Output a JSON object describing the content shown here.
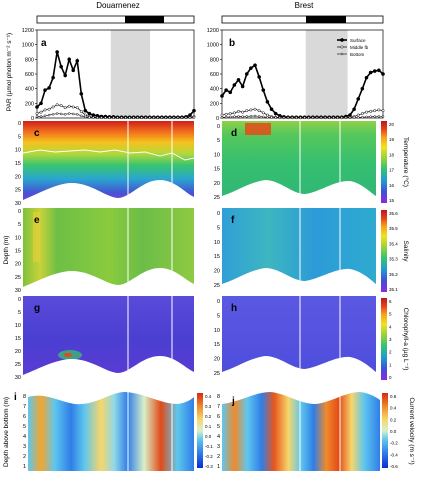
{
  "sites": [
    "Douarnenez",
    "Brest"
  ],
  "panel_letters": [
    "a",
    "b",
    "c",
    "d",
    "e",
    "f",
    "g",
    "h",
    "i",
    "j"
  ],
  "y_labels": {
    "par": "PAR (µmol photon m⁻² s⁻¹)",
    "depth": "Depth (m)",
    "height": "Depth above bottom (m)"
  },
  "colorbar_labels": {
    "temperature": "Temperature (°C)",
    "salinity": "Salinity",
    "chlorophyll": "Chlorophyll-a (µg L⁻¹)",
    "velocity": "Current velocity (m s⁻¹)"
  },
  "colorbar_ticks": {
    "temperature": [
      "15",
      "16",
      "17",
      "18",
      "19",
      "20"
    ],
    "salinity": [
      "35.6",
      "35.5",
      "35.4",
      "35.3",
      "35.2",
      "35.1"
    ],
    "chlorophyll": [
      "6",
      "5",
      "4",
      "3",
      "2",
      "1",
      "0"
    ],
    "velocity_left": [
      "0.4",
      "0.3",
      "0.2",
      "0.1",
      "0.0",
      "-0.1",
      "-0.2",
      "-0.3"
    ],
    "velocity_right": [
      "0.6",
      "0.4",
      "0.2",
      "0.0",
      "-0.2",
      "-0.4",
      "-0.6"
    ]
  },
  "palette": {
    "rainbow": [
      "#8a2be2",
      "#3f51d4",
      "#1e9fd0",
      "#36c46c",
      "#9ad23a",
      "#f2e21d",
      "#f6a21a",
      "#e8411c",
      "#c0141a"
    ],
    "diverging": [
      "#0a2bd6",
      "#2f7ee8",
      "#5ec7ee",
      "#d9f1c8",
      "#f7d66a",
      "#f08a2a",
      "#d42a13"
    ]
  },
  "chart_data": [
    {
      "panel": "a",
      "type": "line",
      "site": "Douarnenez",
      "ylabel": "PAR (µmol photon m⁻² s⁻¹)",
      "ylim": [
        0,
        1200
      ],
      "yticks": [
        "1200",
        "1000",
        "800",
        "600",
        "400",
        "200",
        "0"
      ],
      "night_shading": [
        0.47,
        0.72
      ],
      "x": [
        0,
        1,
        2,
        3,
        4,
        5,
        6,
        7,
        8,
        9,
        10,
        11,
        12,
        13,
        14,
        15,
        16,
        17,
        18,
        19,
        20,
        21,
        22,
        23,
        24,
        25,
        26,
        27,
        28,
        29,
        30,
        31,
        32,
        33,
        34,
        35,
        36,
        37,
        38,
        39
      ],
      "series": [
        {
          "name": "Surface",
          "values": [
            150,
            200,
            380,
            410,
            550,
            900,
            700,
            580,
            800,
            650,
            780,
            330,
            100,
            60,
            40,
            30,
            20,
            20,
            15,
            15,
            10,
            10,
            10,
            10,
            10,
            10,
            10,
            10,
            10,
            10,
            10,
            10,
            10,
            10,
            10,
            10,
            10,
            15,
            40,
            100
          ]
        },
        {
          "name": "Middle fb",
          "values": [
            60,
            80,
            110,
            120,
            150,
            180,
            170,
            140,
            160,
            150,
            140,
            90,
            40,
            20,
            10,
            5,
            5,
            5,
            5,
            5,
            5,
            5,
            5,
            5,
            5,
            5,
            5,
            5,
            5,
            5,
            5,
            5,
            5,
            5,
            5,
            5,
            5,
            5,
            10,
            20
          ]
        },
        {
          "name": "Bottom",
          "values": [
            20,
            20,
            30,
            40,
            50,
            60,
            55,
            50,
            60,
            55,
            50,
            30,
            15,
            8,
            5,
            3,
            3,
            3,
            3,
            3,
            3,
            3,
            3,
            3,
            3,
            3,
            3,
            3,
            3,
            3,
            3,
            3,
            3,
            3,
            3,
            3,
            3,
            3,
            5,
            8
          ]
        }
      ]
    },
    {
      "panel": "b",
      "type": "line",
      "site": "Brest",
      "ylim": [
        0,
        1200
      ],
      "yticks": [
        "1200",
        "1000",
        "800",
        "600",
        "400",
        "200",
        "0"
      ],
      "night_shading": [
        0.52,
        0.78
      ],
      "legend": "top-right",
      "x": [
        0,
        1,
        2,
        3,
        4,
        5,
        6,
        7,
        8,
        9,
        10,
        11,
        12,
        13,
        14,
        15,
        16,
        17,
        18,
        19,
        20,
        21,
        22,
        23,
        24,
        25,
        26,
        27,
        28,
        29,
        30,
        31,
        32,
        33,
        34,
        35,
        36,
        37,
        38,
        39
      ],
      "series": [
        {
          "name": "Surface",
          "values": [
            300,
            380,
            350,
            450,
            520,
            430,
            600,
            680,
            720,
            560,
            380,
            220,
            120,
            60,
            30,
            15,
            10,
            10,
            10,
            10,
            10,
            10,
            10,
            10,
            10,
            10,
            10,
            10,
            10,
            10,
            20,
            40,
            120,
            260,
            400,
            550,
            620,
            640,
            650,
            600
          ]
        },
        {
          "name": "Middle fb",
          "values": [
            40,
            50,
            60,
            70,
            90,
            80,
            100,
            110,
            120,
            100,
            70,
            40,
            20,
            10,
            5,
            5,
            5,
            5,
            5,
            5,
            5,
            5,
            5,
            5,
            5,
            5,
            5,
            5,
            5,
            5,
            5,
            10,
            20,
            40,
            60,
            80,
            90,
            100,
            110,
            100
          ]
        },
        {
          "name": "Bottom",
          "values": [
            10,
            12,
            15,
            18,
            20,
            18,
            22,
            25,
            28,
            22,
            15,
            10,
            5,
            3,
            2,
            2,
            2,
            2,
            2,
            2,
            2,
            2,
            2,
            2,
            2,
            2,
            2,
            2,
            2,
            2,
            2,
            3,
            5,
            8,
            12,
            15,
            18,
            20,
            22,
            20
          ]
        }
      ]
    },
    {
      "panel": "c",
      "type": "heatmap",
      "site": "Douarnenez",
      "variable": "Temperature",
      "ylabel": "Depth (m)",
      "yticks": [
        "0",
        "5",
        "10",
        "15",
        "20",
        "25",
        "30"
      ]
    },
    {
      "panel": "d",
      "type": "heatmap",
      "site": "Brest",
      "variable": "Temperature",
      "yticks": [
        "0",
        "5",
        "10",
        "15",
        "20",
        "25"
      ]
    },
    {
      "panel": "e",
      "type": "heatmap",
      "site": "Douarnenez",
      "variable": "Salinity",
      "yticks": [
        "0",
        "5",
        "10",
        "15",
        "20",
        "25",
        "30"
      ]
    },
    {
      "panel": "f",
      "type": "heatmap",
      "site": "Brest",
      "variable": "Salinity",
      "yticks": [
        "0",
        "5",
        "10",
        "15",
        "20",
        "25"
      ]
    },
    {
      "panel": "g",
      "type": "heatmap",
      "site": "Douarnenez",
      "variable": "Chlorophyll-a",
      "yticks": [
        "0",
        "5",
        "10",
        "15",
        "20",
        "25",
        "30"
      ]
    },
    {
      "panel": "h",
      "type": "heatmap",
      "site": "Brest",
      "variable": "Chlorophyll-a",
      "yticks": [
        "0",
        "5",
        "10",
        "15",
        "20",
        "25"
      ]
    },
    {
      "panel": "i",
      "type": "heatmap",
      "site": "Douarnenez",
      "variable": "Current velocity",
      "ylabel": "Depth above bottom (m)",
      "yticks": [
        "8",
        "7",
        "6",
        "5",
        "4",
        "3",
        "2",
        "1"
      ]
    },
    {
      "panel": "j",
      "type": "heatmap",
      "site": "Brest",
      "variable": "Current velocity",
      "yticks": [
        "8",
        "7",
        "6",
        "5",
        "4",
        "3",
        "2",
        "1"
      ]
    }
  ]
}
